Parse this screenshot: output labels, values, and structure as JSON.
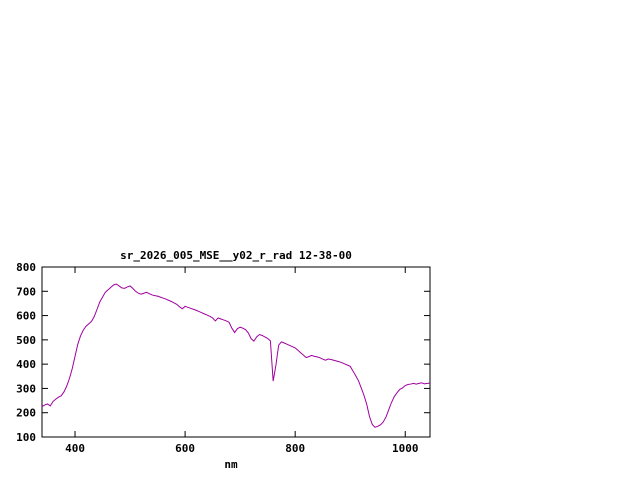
{
  "window": {
    "background_color": "#ffffff",
    "foreground_color": "#000000"
  },
  "chart_data": {
    "type": "line",
    "title": "sr_2026_005_MSE__y02_r_rad 12-38-00",
    "xlabel": "nm",
    "ylabel": "",
    "xlim": [
      340,
      1045
    ],
    "ylim": [
      100,
      800
    ],
    "x_ticks": [
      400,
      600,
      800,
      1000
    ],
    "y_ticks": [
      100,
      200,
      300,
      400,
      500,
      600,
      700,
      800
    ],
    "grid": false,
    "legend_position": "none",
    "line_color": "#a000a0",
    "series": [
      {
        "name": "sr_2026_005_MSE__y02_r_rad",
        "x": [
          340,
          345,
          350,
          355,
          360,
          365,
          370,
          375,
          380,
          385,
          390,
          395,
          400,
          405,
          410,
          415,
          420,
          425,
          430,
          435,
          440,
          445,
          450,
          455,
          460,
          465,
          470,
          475,
          480,
          485,
          490,
          495,
          500,
          505,
          510,
          515,
          520,
          525,
          530,
          535,
          540,
          545,
          550,
          555,
          560,
          565,
          570,
          575,
          580,
          585,
          590,
          595,
          600,
          605,
          610,
          615,
          620,
          625,
          630,
          635,
          640,
          645,
          650,
          655,
          660,
          665,
          670,
          675,
          680,
          685,
          690,
          695,
          700,
          705,
          710,
          715,
          720,
          725,
          730,
          735,
          740,
          745,
          750,
          755,
          760,
          765,
          770,
          775,
          780,
          785,
          790,
          795,
          800,
          805,
          810,
          815,
          820,
          825,
          830,
          835,
          840,
          845,
          850,
          855,
          860,
          865,
          870,
          875,
          880,
          885,
          890,
          895,
          900,
          905,
          910,
          915,
          920,
          925,
          930,
          935,
          940,
          945,
          950,
          955,
          960,
          965,
          970,
          975,
          980,
          985,
          990,
          995,
          1000,
          1005,
          1010,
          1015,
          1020,
          1025,
          1030,
          1035,
          1040,
          1045
        ],
        "y": [
          225,
          232,
          236,
          228,
          246,
          256,
          264,
          270,
          286,
          310,
          342,
          382,
          432,
          482,
          516,
          540,
          556,
          566,
          576,
          596,
          626,
          656,
          676,
          696,
          706,
          716,
          726,
          730,
          722,
          714,
          712,
          718,
          722,
          712,
          700,
          692,
          688,
          692,
          696,
          690,
          685,
          682,
          680,
          676,
          672,
          668,
          663,
          658,
          652,
          646,
          636,
          628,
          638,
          634,
          630,
          626,
          622,
          617,
          612,
          607,
          602,
          597,
          590,
          578,
          590,
          586,
          582,
          578,
          572,
          548,
          530,
          546,
          552,
          548,
          542,
          528,
          505,
          495,
          512,
          522,
          518,
          512,
          506,
          496,
          330,
          395,
          478,
          492,
          487,
          482,
          477,
          472,
          467,
          457,
          447,
          437,
          427,
          431,
          436,
          432,
          430,
          426,
          421,
          416,
          421,
          419,
          416,
          413,
          410,
          406,
          401,
          396,
          391,
          372,
          352,
          332,
          302,
          272,
          235,
          185,
          152,
          140,
          144,
          150,
          162,
          182,
          212,
          242,
          266,
          282,
          296,
          302,
          312,
          316,
          318,
          321,
          318,
          321,
          323,
          319,
          321,
          322
        ]
      }
    ]
  }
}
